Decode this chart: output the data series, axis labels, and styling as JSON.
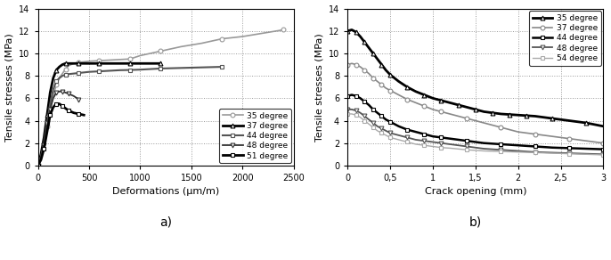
{
  "chart_a": {
    "title": "a)",
    "xlabel": "Deformations (μm/m)",
    "ylabel": "Tensile stresses (MPa)",
    "xlim": [
      0,
      2500
    ],
    "ylim": [
      0,
      14
    ],
    "yticks": [
      0,
      2,
      4,
      6,
      8,
      10,
      12,
      14
    ],
    "xticks": [
      0,
      500,
      1000,
      1500,
      2000,
      2500
    ],
    "legend_loc": "lower right",
    "series": [
      {
        "label": "35 degree",
        "marker": "o",
        "markersize": 3.5,
        "linewidth": 1.2,
        "color": "#999999",
        "markevery": 3,
        "x": [
          0,
          30,
          60,
          90,
          120,
          150,
          180,
          210,
          240,
          270,
          300,
          350,
          400,
          450,
          500,
          600,
          700,
          800,
          900,
          1000,
          1100,
          1200,
          1400,
          1600,
          1800,
          2000,
          2200,
          2400
        ],
        "y": [
          0,
          0.8,
          2.0,
          3.5,
          5.0,
          6.2,
          7.2,
          7.8,
          8.2,
          8.6,
          8.9,
          9.1,
          9.2,
          9.25,
          9.3,
          9.35,
          9.4,
          9.45,
          9.5,
          9.8,
          10.0,
          10.2,
          10.6,
          10.9,
          11.3,
          11.5,
          11.8,
          12.1
        ]
      },
      {
        "label": "37 degree",
        "marker": "^",
        "markersize": 3.5,
        "linewidth": 2.0,
        "color": "#000000",
        "markevery": 3,
        "x": [
          0,
          30,
          60,
          90,
          120,
          150,
          180,
          210,
          240,
          270,
          300,
          350,
          400,
          450,
          500,
          600,
          700,
          800,
          900,
          1000,
          1100,
          1200
        ],
        "y": [
          0,
          1.0,
          2.5,
          4.5,
          6.5,
          7.8,
          8.5,
          8.8,
          9.0,
          9.1,
          9.1,
          9.1,
          9.1,
          9.1,
          9.1,
          9.1,
          9.1,
          9.1,
          9.1,
          9.1,
          9.1,
          9.1
        ]
      },
      {
        "label": "44 degree",
        "marker": "s",
        "markersize": 3.5,
        "linewidth": 1.5,
        "color": "#555555",
        "markevery": 3,
        "x": [
          0,
          30,
          60,
          90,
          120,
          150,
          180,
          210,
          240,
          270,
          300,
          350,
          400,
          450,
          500,
          600,
          700,
          800,
          900,
          1000,
          1100,
          1200,
          1400,
          1600,
          1800
        ],
        "y": [
          0,
          0.8,
          2.0,
          3.8,
          5.5,
          6.8,
          7.5,
          7.8,
          8.0,
          8.1,
          8.15,
          8.2,
          8.25,
          8.3,
          8.35,
          8.4,
          8.45,
          8.5,
          8.52,
          8.55,
          8.6,
          8.65,
          8.7,
          8.75,
          8.8
        ]
      },
      {
        "label": "48 degree",
        "marker": "v",
        "markersize": 3.5,
        "linewidth": 1.3,
        "color": "#333333",
        "markevery": 2,
        "x": [
          0,
          30,
          60,
          90,
          120,
          150,
          180,
          210,
          240,
          270,
          300,
          350,
          400
        ],
        "y": [
          0,
          0.7,
          1.8,
          3.5,
          5.0,
          6.0,
          6.5,
          6.6,
          6.6,
          6.5,
          6.4,
          6.2,
          5.9
        ]
      },
      {
        "label": "51 degree",
        "marker": "s",
        "markersize": 3.5,
        "linewidth": 2.0,
        "color": "#000000",
        "markevery": 2,
        "x": [
          0,
          30,
          60,
          90,
          120,
          150,
          180,
          210,
          240,
          270,
          300,
          350,
          400,
          450
        ],
        "y": [
          0,
          0.5,
          1.5,
          3.0,
          4.5,
          5.2,
          5.5,
          5.5,
          5.3,
          5.1,
          4.9,
          4.7,
          4.6,
          4.5
        ]
      }
    ]
  },
  "chart_b": {
    "title": "b)",
    "xlabel": "Crack opening (mm)",
    "ylabel": "Tensile stresses (MPa)",
    "xlim": [
      0,
      3
    ],
    "ylim": [
      0,
      14
    ],
    "yticks": [
      0,
      2,
      4,
      6,
      8,
      10,
      12,
      14
    ],
    "xticks": [
      0,
      0.5,
      1.0,
      1.5,
      2.0,
      2.5,
      3.0
    ],
    "xticklabels": [
      "0",
      "0,5",
      "1",
      "1,5",
      "2",
      "2,5",
      "3"
    ],
    "legend_loc": "upper right",
    "series": [
      {
        "label": "35 degree",
        "marker": "^",
        "markersize": 3.5,
        "linewidth": 2.0,
        "color": "#000000",
        "markevery": 2,
        "x": [
          0,
          0.05,
          0.1,
          0.15,
          0.2,
          0.25,
          0.3,
          0.35,
          0.4,
          0.45,
          0.5,
          0.6,
          0.7,
          0.8,
          0.9,
          1.0,
          1.1,
          1.2,
          1.3,
          1.4,
          1.5,
          1.6,
          1.7,
          1.8,
          1.9,
          2.0,
          2.1,
          2.2,
          2.4,
          2.6,
          2.8,
          3.0
        ],
        "y": [
          12.0,
          12.1,
          11.9,
          11.5,
          11.0,
          10.5,
          10.0,
          9.5,
          9.0,
          8.5,
          8.1,
          7.5,
          7.0,
          6.6,
          6.3,
          6.0,
          5.8,
          5.6,
          5.4,
          5.2,
          5.0,
          4.8,
          4.7,
          4.6,
          4.55,
          4.5,
          4.45,
          4.4,
          4.2,
          4.0,
          3.8,
          3.5
        ]
      },
      {
        "label": "37 degree",
        "marker": "o",
        "markersize": 3.5,
        "linewidth": 1.2,
        "color": "#888888",
        "markevery": 2,
        "x": [
          0,
          0.05,
          0.1,
          0.15,
          0.2,
          0.25,
          0.3,
          0.35,
          0.4,
          0.45,
          0.5,
          0.6,
          0.7,
          0.8,
          0.9,
          1.0,
          1.1,
          1.2,
          1.4,
          1.6,
          1.8,
          2.0,
          2.2,
          2.4,
          2.6,
          2.8,
          3.0
        ],
        "y": [
          9.0,
          9.1,
          9.0,
          8.8,
          8.5,
          8.2,
          7.8,
          7.5,
          7.2,
          6.9,
          6.7,
          6.3,
          5.9,
          5.6,
          5.3,
          5.0,
          4.8,
          4.6,
          4.2,
          3.8,
          3.4,
          3.0,
          2.8,
          2.6,
          2.4,
          2.2,
          2.0
        ]
      },
      {
        "label": "44 degree",
        "marker": "s",
        "markersize": 3.5,
        "linewidth": 1.8,
        "color": "#000000",
        "markevery": 2,
        "x": [
          0,
          0.05,
          0.1,
          0.15,
          0.2,
          0.25,
          0.3,
          0.35,
          0.4,
          0.45,
          0.5,
          0.6,
          0.7,
          0.8,
          0.9,
          1.0,
          1.1,
          1.2,
          1.4,
          1.6,
          1.8,
          2.0,
          2.2,
          2.4,
          2.6,
          2.8,
          3.0
        ],
        "y": [
          6.2,
          6.3,
          6.2,
          6.0,
          5.7,
          5.4,
          5.0,
          4.7,
          4.4,
          4.1,
          3.9,
          3.5,
          3.2,
          3.0,
          2.8,
          2.6,
          2.5,
          2.4,
          2.2,
          2.0,
          1.9,
          1.8,
          1.7,
          1.6,
          1.55,
          1.5,
          1.45
        ]
      },
      {
        "label": "48 degree",
        "marker": "v",
        "markersize": 3.5,
        "linewidth": 1.3,
        "color": "#555555",
        "markevery": 2,
        "x": [
          0,
          0.05,
          0.1,
          0.15,
          0.2,
          0.25,
          0.3,
          0.35,
          0.4,
          0.45,
          0.5,
          0.6,
          0.7,
          0.8,
          0.9,
          1.0,
          1.1,
          1.2,
          1.4,
          1.6,
          1.8,
          2.0,
          2.2,
          2.4,
          2.6,
          2.8,
          3.0
        ],
        "y": [
          5.0,
          5.0,
          4.9,
          4.7,
          4.4,
          4.1,
          3.8,
          3.5,
          3.3,
          3.1,
          2.9,
          2.7,
          2.5,
          2.3,
          2.2,
          2.1,
          2.0,
          1.9,
          1.7,
          1.5,
          1.4,
          1.3,
          1.2,
          1.15,
          1.1,
          1.05,
          1.0
        ]
      },
      {
        "label": "54 degree",
        "marker": "s",
        "markersize": 3.5,
        "linewidth": 1.0,
        "color": "#aaaaaa",
        "markevery": 2,
        "x": [
          0,
          0.05,
          0.1,
          0.15,
          0.2,
          0.25,
          0.3,
          0.35,
          0.4,
          0.45,
          0.5,
          0.6,
          0.7,
          0.8,
          0.9,
          1.0,
          1.1,
          1.2,
          1.4,
          1.6,
          1.8,
          2.0,
          2.2,
          2.4,
          2.6,
          2.8,
          3.0
        ],
        "y": [
          4.6,
          4.6,
          4.5,
          4.3,
          4.0,
          3.7,
          3.4,
          3.1,
          2.9,
          2.7,
          2.5,
          2.3,
          2.1,
          1.9,
          1.8,
          1.7,
          1.6,
          1.55,
          1.4,
          1.3,
          1.25,
          1.2,
          1.15,
          1.1,
          1.05,
          1.0,
          0.95
        ]
      }
    ]
  },
  "bg_color": "#ffffff",
  "grid_color": "#999999",
  "grid_style": ":"
}
